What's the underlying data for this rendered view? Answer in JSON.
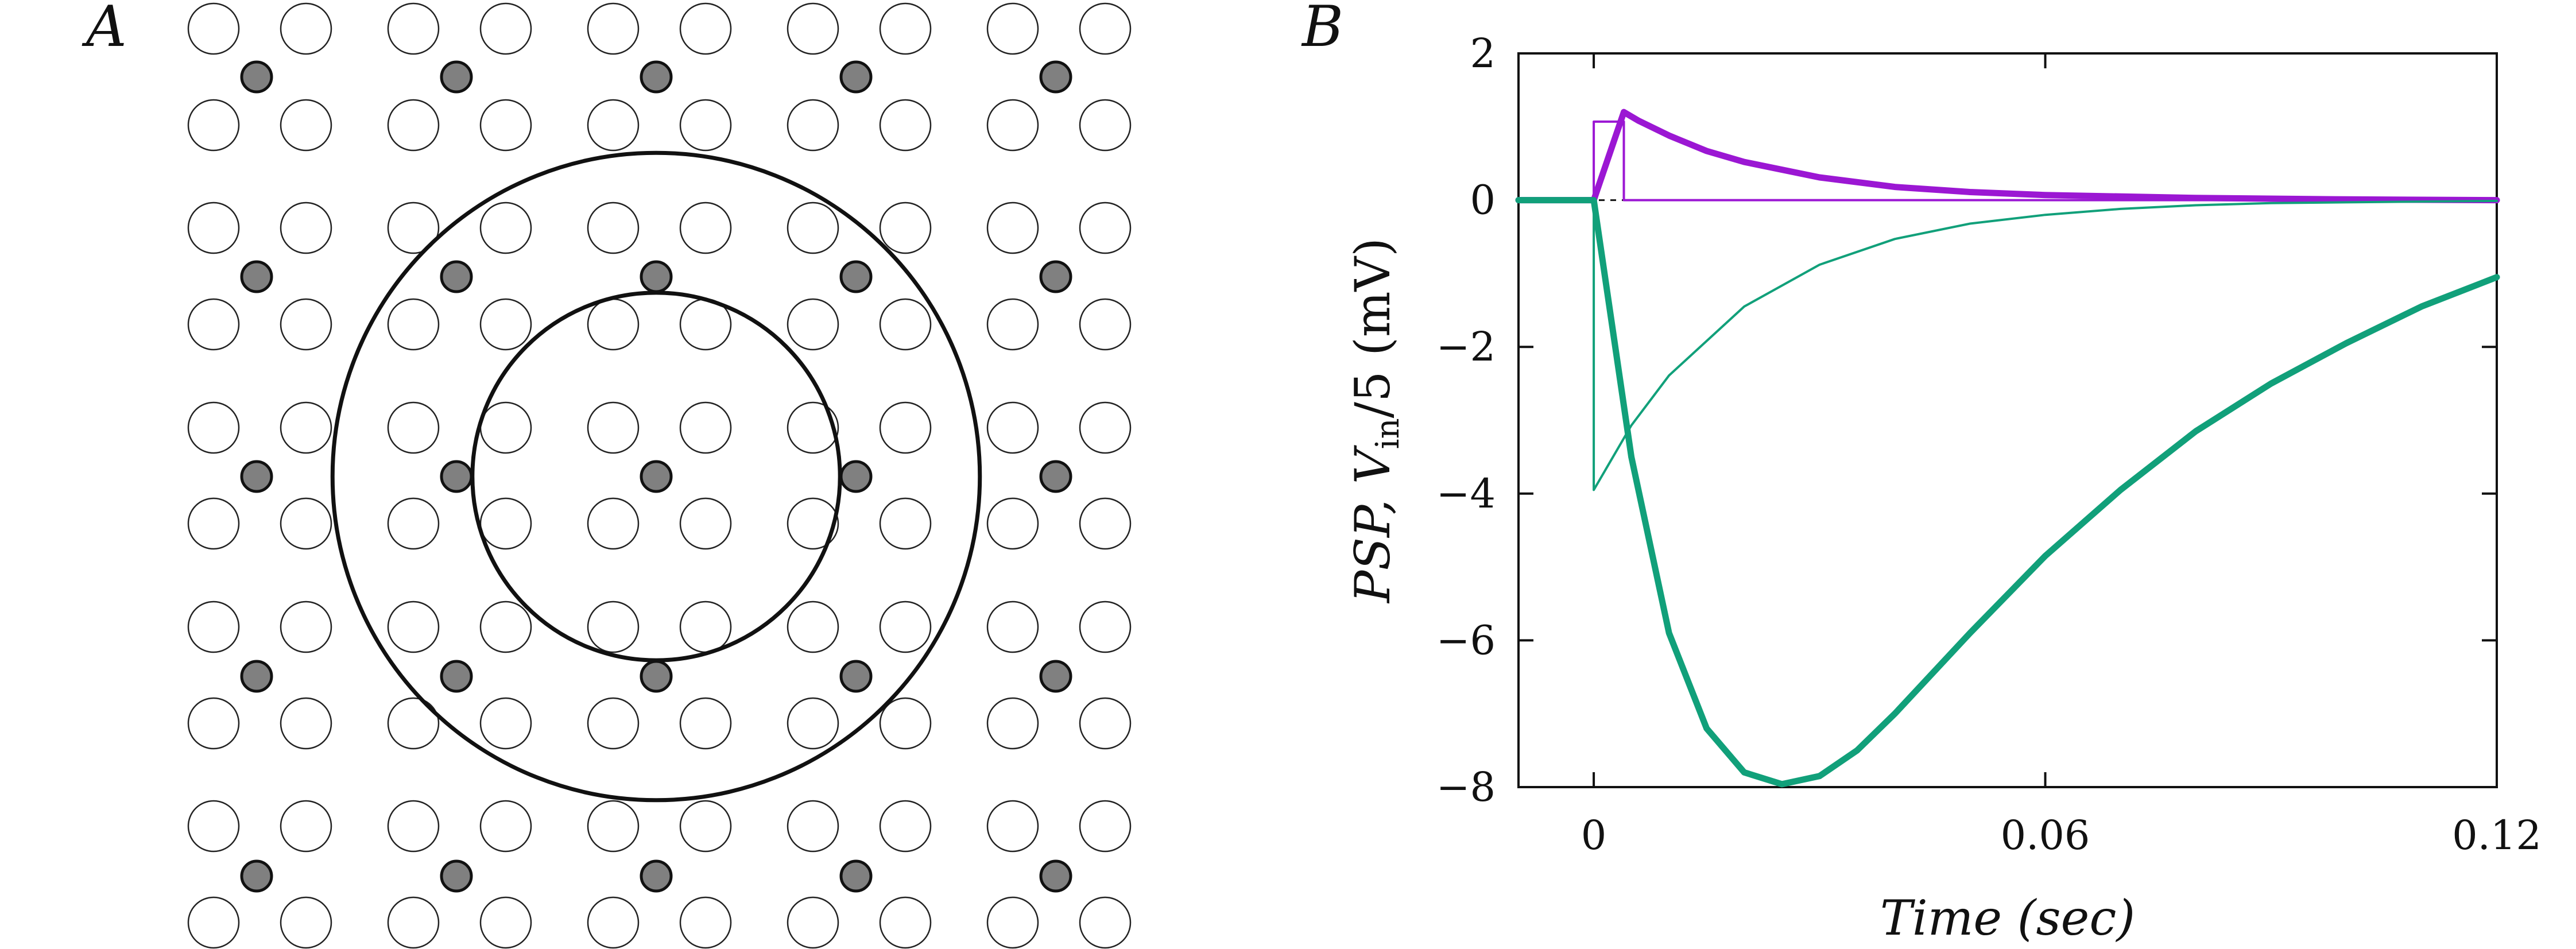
{
  "panels": {
    "a": {
      "letter": "A",
      "lattice": {
        "neuron_rows": [
          0,
          1,
          2,
          3,
          4
        ],
        "neuron_cols": [
          0,
          1,
          2,
          3,
          4
        ],
        "center_neuron": [
          2,
          2
        ],
        "inner_ring_radius_neuron_units": 0.92,
        "outer_ring_radius_neuron_units": 1.62,
        "filled_color": "#808080",
        "open_color": "#ffffff"
      }
    },
    "b": {
      "letter": "B"
    }
  },
  "chart_data": {
    "type": "line",
    "title": "",
    "xlabel": "Time (sec)",
    "ylabel": "PSP, Vin/5 (mV)",
    "ylabel_parts": {
      "pre": "PSP, ",
      "var": "V",
      "sub": "in",
      "post": "/5 (mV)"
    },
    "xlim": [
      -0.01,
      0.12
    ],
    "ylim": [
      -8,
      2
    ],
    "x_ticks": [
      0,
      0.06,
      0.12
    ],
    "x_tick_labels": [
      "0",
      "0.06",
      "0.12"
    ],
    "y_ticks": [
      -8,
      -6,
      -4,
      -2,
      0,
      2
    ],
    "y_tick_labels": [
      "−8",
      "−6",
      "−4",
      "−2",
      "0",
      "2"
    ],
    "grid": false,
    "series": [
      {
        "color": "#9b17d3",
        "style": "thin",
        "x": [
          -0.01,
          0,
          0,
          0.004,
          0.004,
          0.12
        ],
        "y": [
          0,
          0,
          1.07,
          1.07,
          0,
          0
        ]
      },
      {
        "color": "#9b17d3",
        "style": "thick",
        "x": [
          -0.01,
          0,
          0.004,
          0.006,
          0.01,
          0.015,
          0.02,
          0.03,
          0.04,
          0.05,
          0.06,
          0.08,
          0.1,
          0.12
        ],
        "y": [
          0,
          0,
          1.2,
          1.08,
          0.88,
          0.67,
          0.52,
          0.31,
          0.18,
          0.11,
          0.07,
          0.03,
          0.01,
          0
        ]
      },
      {
        "color": "#11a07a",
        "style": "thin",
        "x": [
          0,
          0,
          0.005,
          0.01,
          0.02,
          0.03,
          0.04,
          0.05,
          0.06,
          0.07,
          0.08,
          0.09,
          0.1,
          0.12
        ],
        "y": [
          0,
          -3.95,
          -3.07,
          -2.39,
          -1.45,
          -0.88,
          -0.53,
          -0.32,
          -0.2,
          -0.12,
          -0.07,
          -0.04,
          -0.03,
          -0.01
        ]
      },
      {
        "color": "#11a07a",
        "style": "thick",
        "x": [
          -0.01,
          0,
          0.005,
          0.01,
          0.015,
          0.02,
          0.025,
          0.03,
          0.035,
          0.04,
          0.05,
          0.06,
          0.07,
          0.08,
          0.09,
          0.1,
          0.11,
          0.12
        ],
        "y": [
          0,
          0,
          -3.5,
          -5.9,
          -7.2,
          -7.8,
          -7.96,
          -7.85,
          -7.5,
          -7.0,
          -5.9,
          -4.85,
          -3.95,
          -3.15,
          -2.5,
          -1.95,
          -1.45,
          -1.05
        ]
      }
    ]
  }
}
